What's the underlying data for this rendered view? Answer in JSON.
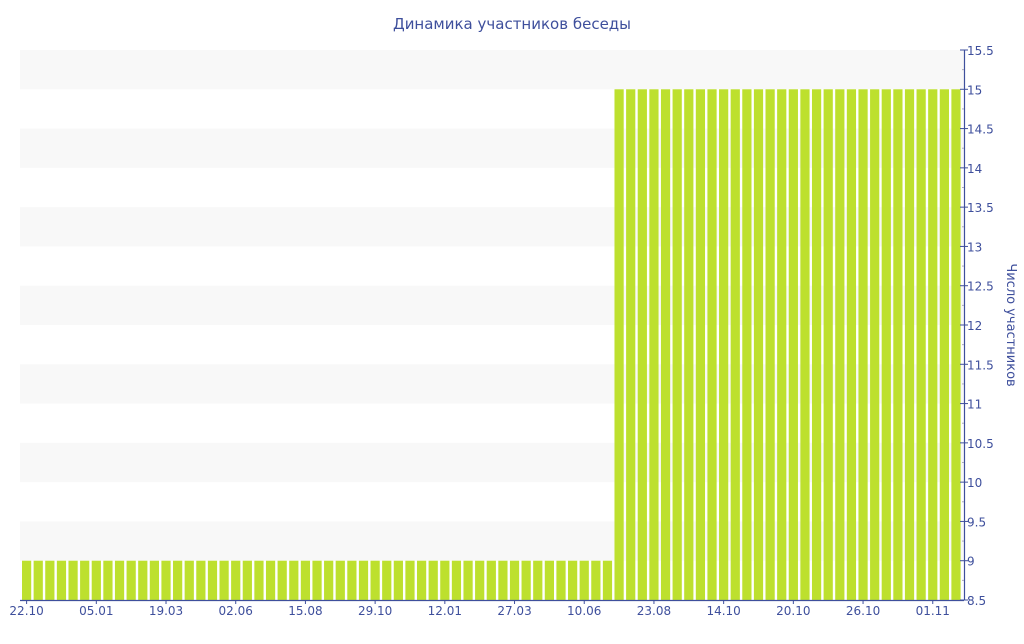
{
  "chart_data": {
    "type": "bar",
    "title": "Динамика участников беседы",
    "xlabel": "",
    "ylabel": "Число участников",
    "ylim": [
      8.5,
      15.5
    ],
    "y_ticks": [
      8.5,
      9,
      9.5,
      10,
      10.5,
      11,
      11.5,
      12,
      12.5,
      13,
      13.5,
      14,
      14.5,
      15,
      15.5
    ],
    "y_axis_position": "right",
    "x_tick_labels": [
      "22.10",
      "05.01",
      "19.03",
      "02.06",
      "15.08",
      "29.10",
      "12.01",
      "27.03",
      "10.06",
      "23.08",
      "14.10",
      "20.10",
      "26.10",
      "01.11"
    ],
    "x_tick_every": 6,
    "values": [
      9,
      9,
      9,
      9,
      9,
      9,
      9,
      9,
      9,
      9,
      9,
      9,
      9,
      9,
      9,
      9,
      9,
      9,
      9,
      9,
      9,
      9,
      9,
      9,
      9,
      9,
      9,
      9,
      9,
      9,
      9,
      9,
      9,
      9,
      9,
      9,
      9,
      9,
      9,
      9,
      9,
      9,
      9,
      9,
      9,
      9,
      9,
      9,
      9,
      9,
      9,
      15,
      15,
      15,
      15,
      15,
      15,
      15,
      15,
      15,
      15,
      15,
      15,
      15,
      15,
      15,
      15,
      15,
      15,
      15,
      15,
      15,
      15,
      15,
      15,
      15,
      15,
      15,
      15,
      15,
      15
    ],
    "grid": "alternating horizontal bands",
    "legend": "none",
    "colors": {
      "bar": "#bde02e",
      "band": "#f8f8f8",
      "axis": "#3e4f9c",
      "text": "#3e4f9c"
    }
  }
}
